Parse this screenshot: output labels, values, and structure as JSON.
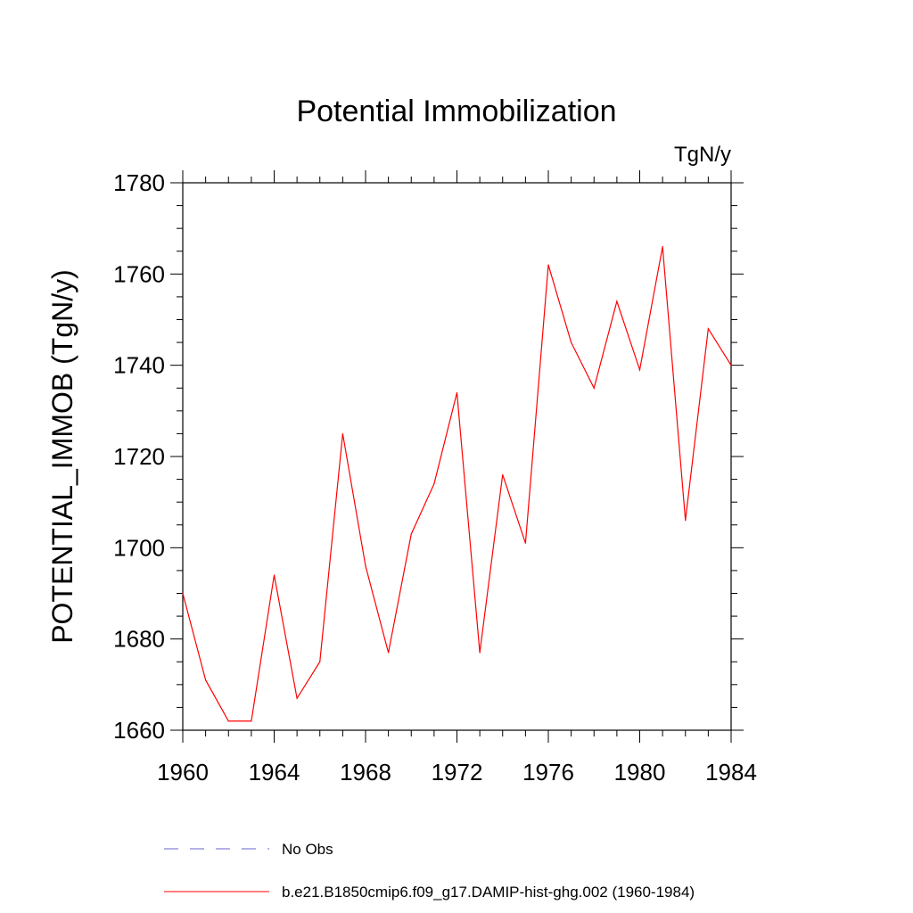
{
  "chart_data": {
    "type": "line",
    "title": "Potential Immobilization",
    "units_label": "TgN/y",
    "ylabel": "POTENTIAL_IMMOB  (TgN/y)",
    "xlabel": "",
    "xlim": [
      1960,
      1984
    ],
    "ylim": [
      1660,
      1780
    ],
    "xticks": [
      "1960",
      "1964",
      "1968",
      "1972",
      "1976",
      "1980",
      "1984"
    ],
    "yticks": [
      "1660",
      "1680",
      "1700",
      "1720",
      "1740",
      "1760",
      "1780"
    ],
    "grid": false,
    "legend_position": "bottom",
    "series": [
      {
        "name": "b.e21.B1850cmip6.f09_g17.DAMIP-hist-ghg.002 (1960-1984)",
        "color": "#ff0000",
        "style": "solid",
        "x": [
          1960,
          1961,
          1962,
          1963,
          1964,
          1965,
          1966,
          1967,
          1968,
          1969,
          1970,
          1971,
          1972,
          1973,
          1974,
          1975,
          1976,
          1977,
          1978,
          1979,
          1980,
          1981,
          1982,
          1983,
          1984
        ],
        "values": [
          1690,
          1671,
          1662,
          1662,
          1694,
          1667,
          1675,
          1725,
          1696,
          1677,
          1703,
          1714,
          1734,
          1677,
          1716,
          1701,
          1762,
          1745,
          1735,
          1754,
          1739,
          1766,
          1706,
          1748,
          1740
        ]
      }
    ],
    "legend": [
      {
        "label": "No Obs",
        "color": "#6666cc",
        "style": "dashed"
      },
      {
        "label": "b.e21.B1850cmip6.f09_g17.DAMIP-hist-ghg.002 (1960-1984)",
        "color": "#ff0000",
        "style": "solid"
      }
    ]
  }
}
